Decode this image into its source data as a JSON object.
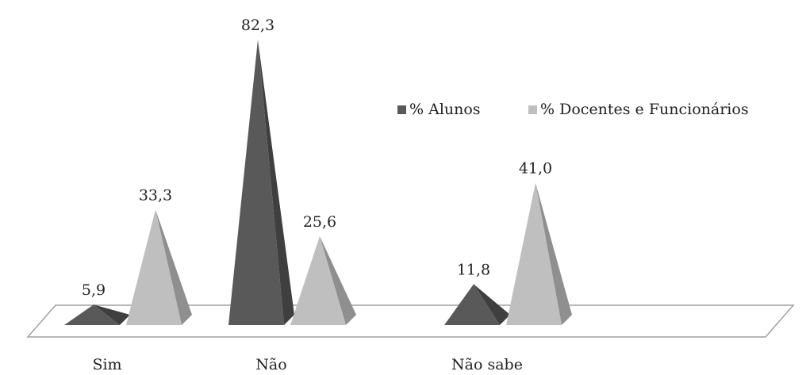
{
  "chart_data": {
    "type": "bar",
    "style": "3d-pyramid",
    "title": "",
    "xlabel": "",
    "ylabel": "",
    "categories": [
      "Sim",
      "Não",
      "Não sabe"
    ],
    "series": [
      {
        "name": "% Alunos",
        "values": [
          5.9,
          82.3,
          11.8
        ],
        "labels": [
          "5,9",
          "82,3",
          "11,8"
        ],
        "color": "#595959"
      },
      {
        "name": "% Docentes e Funcionários",
        "values": [
          33.3,
          25.6,
          41.0
        ],
        "labels": [
          "33,3",
          "25,6",
          "41,0"
        ],
        "color": "#bfbfbf"
      }
    ],
    "ylim": [
      0,
      82.3
    ],
    "grid": false,
    "legend_position": "top-right"
  }
}
